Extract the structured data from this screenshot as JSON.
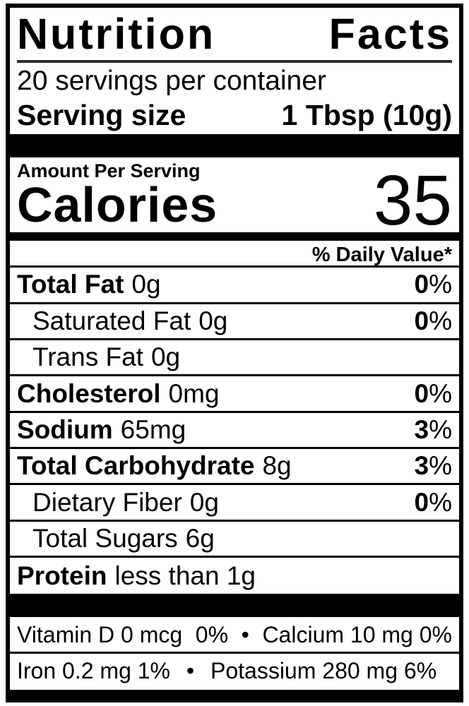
{
  "label": {
    "title": {
      "word1": "Nutrition",
      "word2": "Facts"
    },
    "servings_per_container": "20 servings per container",
    "serving_size": {
      "label": "Serving size",
      "value": "1 Tbsp (10g)"
    },
    "amount_per_serving": "Amount Per Serving",
    "calories": {
      "label": "Calories",
      "value": "35"
    },
    "daily_value_header": "% Daily Value*"
  },
  "strings": {
    "percent": "%"
  },
  "nutrients": [
    {
      "name": "Total Fat",
      "amount": "0g",
      "dv": "0"
    },
    {
      "name": "Saturated Fat",
      "amount": "0g",
      "dv": "0"
    },
    {
      "name": "Trans Fat",
      "amount": "0g"
    },
    {
      "name": "Cholesterol",
      "amount": "0mg",
      "dv": "0"
    },
    {
      "name": "Sodium",
      "amount": "65mg",
      "dv": "3"
    },
    {
      "name": "Total Carbohydrate",
      "amount": "8g",
      "dv": "3"
    },
    {
      "name": "Dietary Fiber",
      "amount": "0g",
      "dv": "0"
    },
    {
      "name": "Total Sugars",
      "amount": "6g"
    },
    {
      "name": "Protein",
      "amount": "less than 1g"
    }
  ],
  "micronutrients": {
    "row1": {
      "left": "Vitamin D 0 mcg",
      "left_dv": "0%",
      "bullet": "•",
      "right": "Calcium 10 mg 0%"
    },
    "row2": {
      "left": "Iron 0.2 mg 1%",
      "bullet": "•",
      "right": "Potassium 280 mg 6%"
    }
  },
  "colors": {
    "text": "#000000",
    "background": "#ffffff",
    "bar": "#000000",
    "title_rule": "#2b2b2b"
  }
}
